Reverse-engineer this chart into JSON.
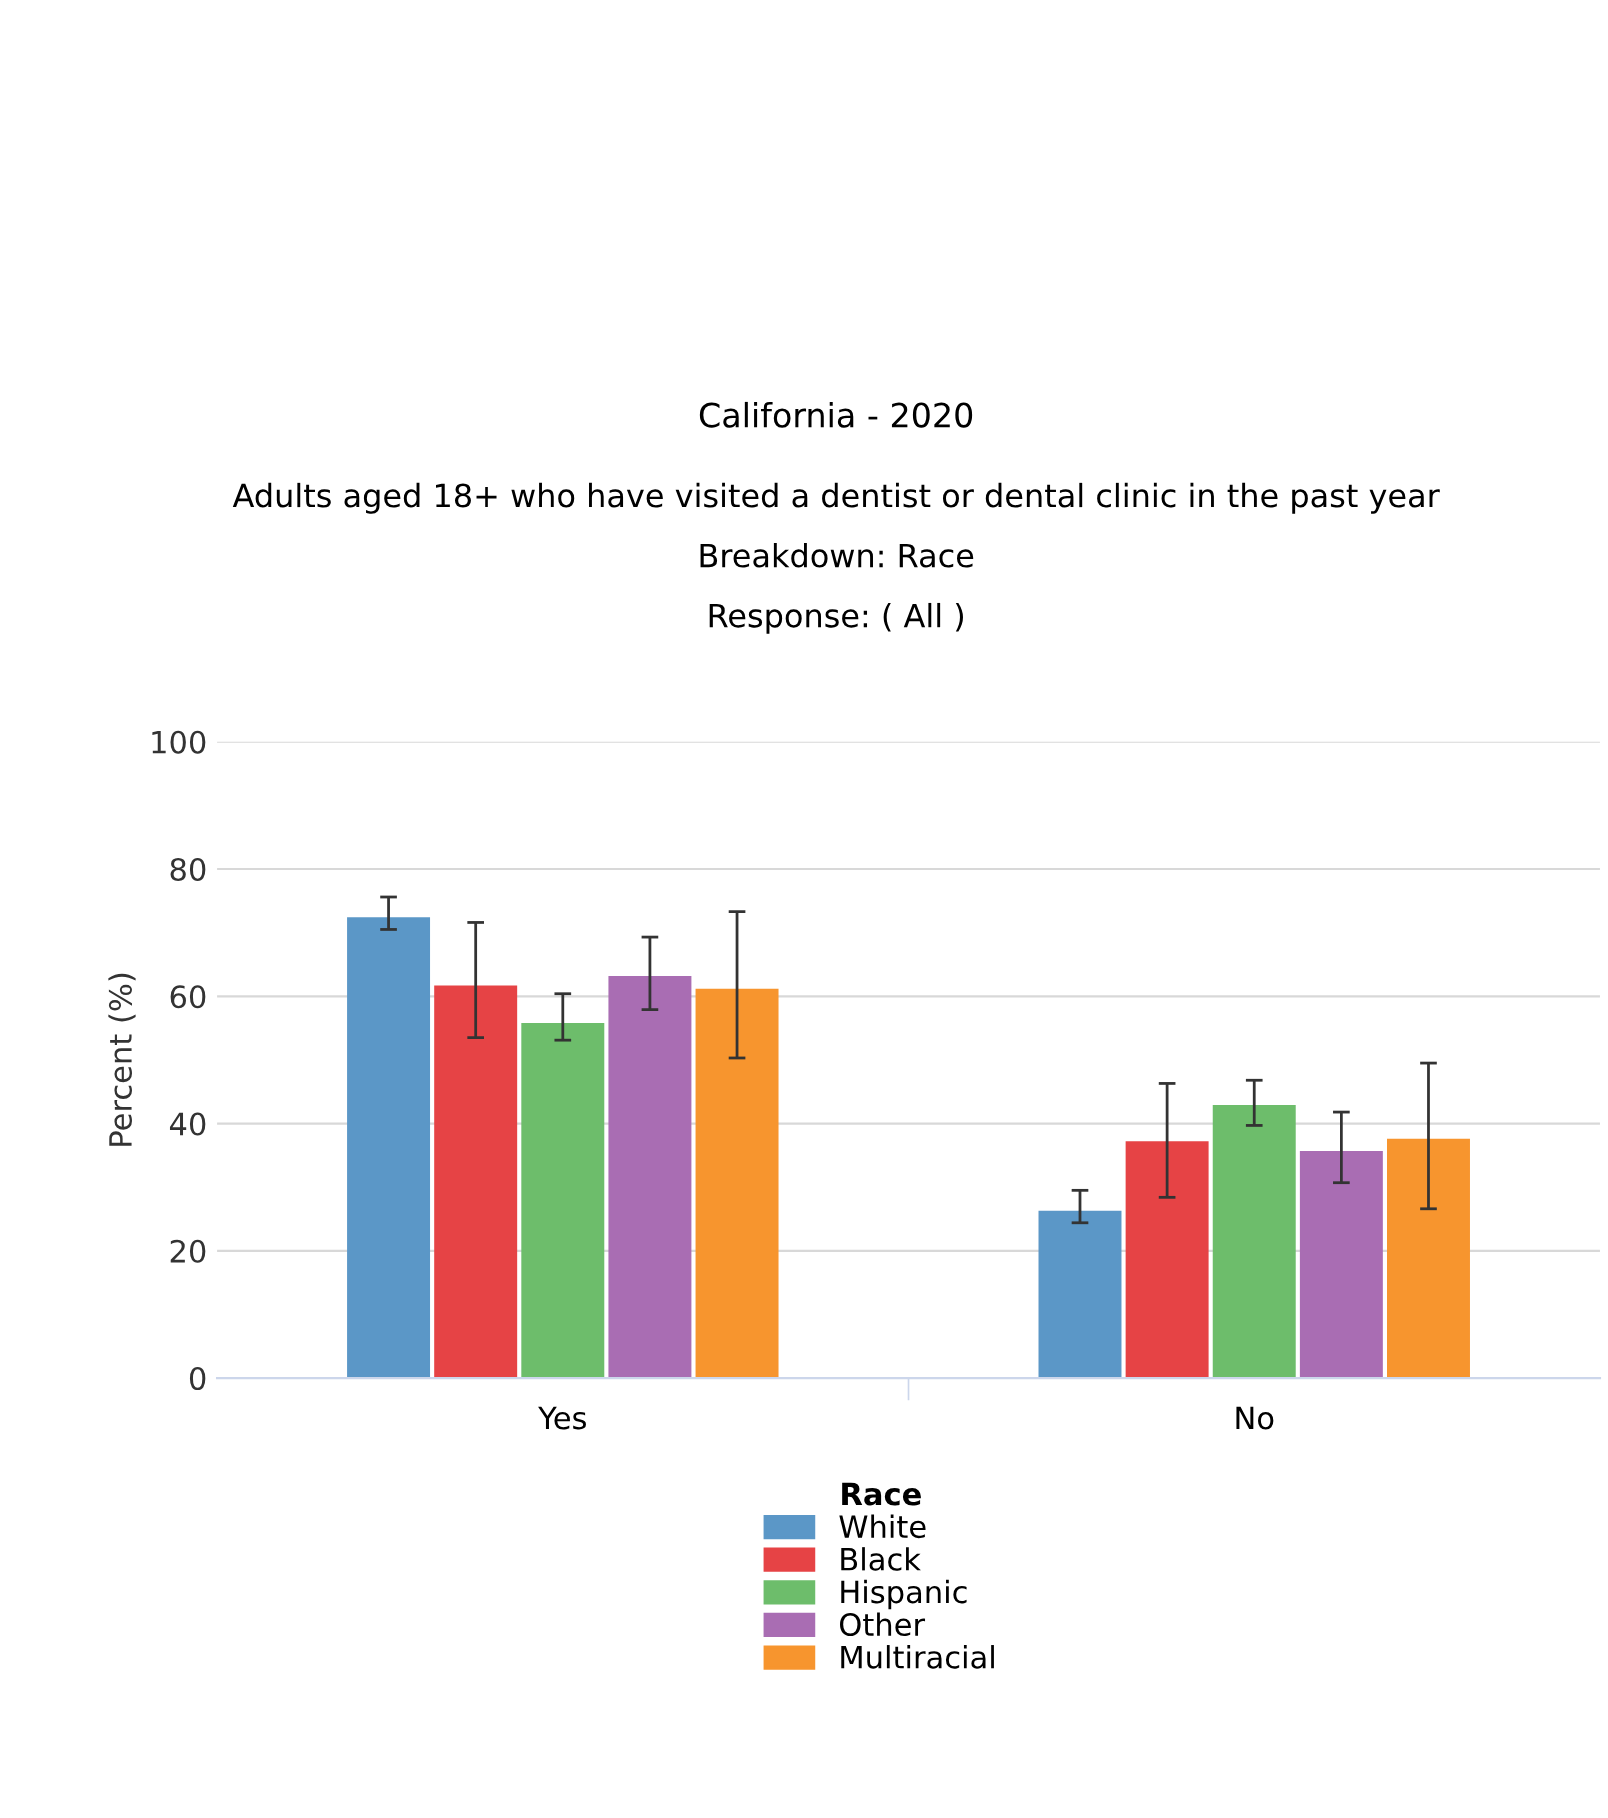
{
  "chart_data": {
    "type": "bar",
    "title": "California - 2020",
    "subtitle": "Adults aged 18+ who have visited a dentist or dental clinic in the past year\nBreakdown: Race\nResponse: ( All )",
    "ylabel": "Percent (%)",
    "legend_title": "Race",
    "categories": [
      "Yes",
      "No"
    ],
    "series": [
      {
        "name": "White",
        "color": "#5b97c7",
        "values": [
          72.4,
          26.3
        ],
        "errors": [
          [
            70.5,
            75.6
          ],
          [
            24.4,
            29.5
          ]
        ]
      },
      {
        "name": "Black",
        "color": "#e64345",
        "values": [
          61.7,
          37.2
        ],
        "errors": [
          [
            53.5,
            71.6
          ],
          [
            28.4,
            46.3
          ]
        ]
      },
      {
        "name": "Hispanic",
        "color": "#6dbd6b",
        "values": [
          55.8,
          42.9
        ],
        "errors": [
          [
            53.1,
            60.4
          ],
          [
            39.7,
            46.8
          ]
        ]
      },
      {
        "name": "Other",
        "color": "#a96db3",
        "values": [
          63.2,
          35.7
        ],
        "errors": [
          [
            57.9,
            69.3
          ],
          [
            30.7,
            41.8
          ]
        ]
      },
      {
        "name": "Multiracial",
        "color": "#f7952e",
        "values": [
          61.2,
          37.6
        ],
        "errors": [
          [
            50.3,
            73.3
          ],
          [
            26.6,
            49.5
          ]
        ]
      }
    ],
    "ylim": [
      0,
      100
    ],
    "yticks": [
      0,
      20,
      40,
      60,
      80,
      100
    ],
    "grid": "y",
    "legend": "bottom"
  }
}
